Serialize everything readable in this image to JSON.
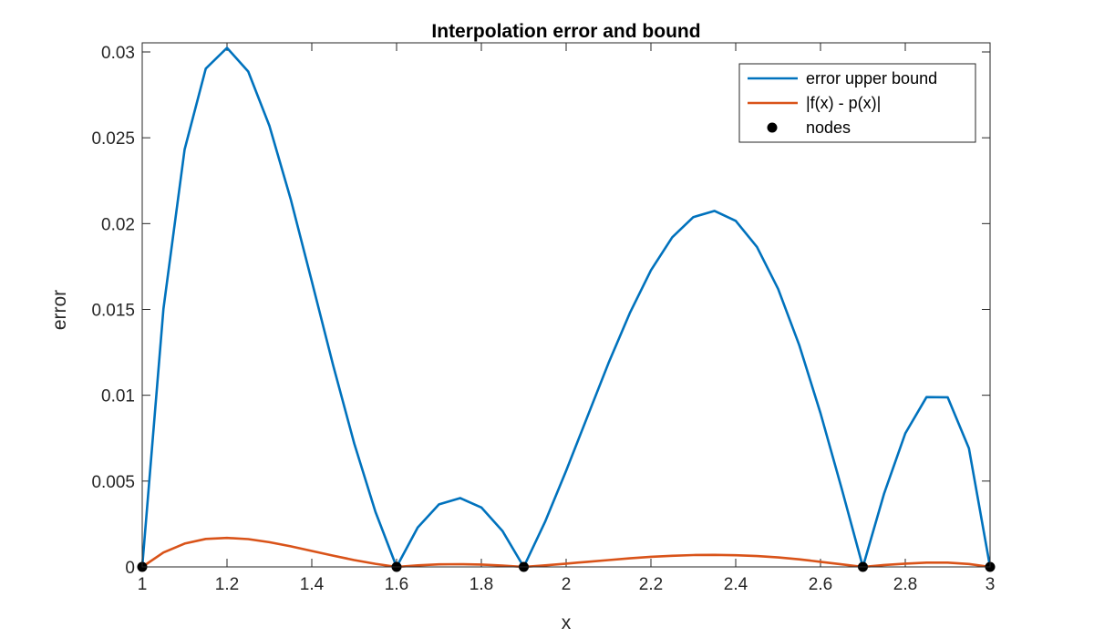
{
  "chart_data": {
    "type": "line",
    "title": "Interpolation error and bound",
    "xlabel": "x",
    "ylabel": "error",
    "xlim": [
      1,
      3
    ],
    "ylim": [
      0,
      0.03
    ],
    "xticks": [
      "1",
      "1.2",
      "1.4",
      "1.6",
      "1.8",
      "2",
      "2.2",
      "2.4",
      "2.6",
      "2.8",
      "3"
    ],
    "xtick_values": [
      1,
      1.2,
      1.4,
      1.6,
      1.8,
      2,
      2.2,
      2.4,
      2.6,
      2.8,
      3
    ],
    "yticks": [
      "0",
      "0.005",
      "0.01",
      "0.015",
      "0.02",
      "0.025",
      "0.03"
    ],
    "ytick_values": [
      0,
      0.005,
      0.01,
      0.015,
      0.02,
      0.025,
      0.03
    ],
    "grid": false,
    "legend_placement": "top-right",
    "x": [
      1,
      1.05,
      1.1,
      1.15,
      1.2,
      1.25,
      1.3,
      1.35,
      1.4,
      1.45,
      1.5,
      1.55,
      1.6,
      1.65,
      1.7,
      1.75,
      1.8,
      1.85,
      1.9,
      1.95,
      2,
      2.05,
      2.1,
      2.15,
      2.2,
      2.25,
      2.3,
      2.35,
      2.4,
      2.45,
      2.5,
      2.55,
      2.6,
      2.65,
      2.7,
      2.75,
      2.8,
      2.85,
      2.9,
      2.95,
      3
    ],
    "series": [
      {
        "name": "error upper bound",
        "color": "#0072BD",
        "style": "line",
        "values": [
          0,
          0.01504,
          0.02432,
          0.02903,
          0.03024,
          0.02886,
          0.0257,
          0.02144,
          0.01664,
          0.01177,
          0.0072,
          0.00321,
          0,
          0.0023,
          0.00364,
          0.00401,
          0.00346,
          0.00208,
          0,
          0.00262,
          0.0056,
          0.00875,
          0.01188,
          0.01478,
          0.01728,
          0.0192,
          0.02038,
          0.02074,
          0.02016,
          0.01864,
          0.0162,
          0.01292,
          0.00896,
          0.00455,
          0,
          0.00428,
          0.00778,
          0.00989,
          0.00988,
          0.00691,
          0
        ]
      },
      {
        "name": "|f(x) - p(x)|",
        "color": "#D95319",
        "style": "line",
        "values": [
          0,
          0.00084,
          0.00136,
          0.00163,
          0.00169,
          0.00162,
          0.00144,
          0.0012,
          0.00093,
          0.00066,
          0.0004,
          0.00018,
          0,
          9e-05,
          0.00015,
          0.00016,
          0.00014,
          8e-05,
          0,
          9e-05,
          0.00019,
          0.0003,
          0.0004,
          0.0005,
          0.00059,
          0.00065,
          0.00069,
          0.0007,
          0.00068,
          0.00063,
          0.00055,
          0.00044,
          0.0003,
          0.00015,
          0,
          0.00011,
          0.00019,
          0.00025,
          0.00025,
          0.00017,
          0
        ]
      },
      {
        "name": "nodes",
        "color": "#000000",
        "style": "markers",
        "x": [
          1,
          1.6,
          1.9,
          2.7,
          3
        ],
        "values": [
          0,
          0,
          0,
          0,
          0
        ]
      }
    ]
  }
}
